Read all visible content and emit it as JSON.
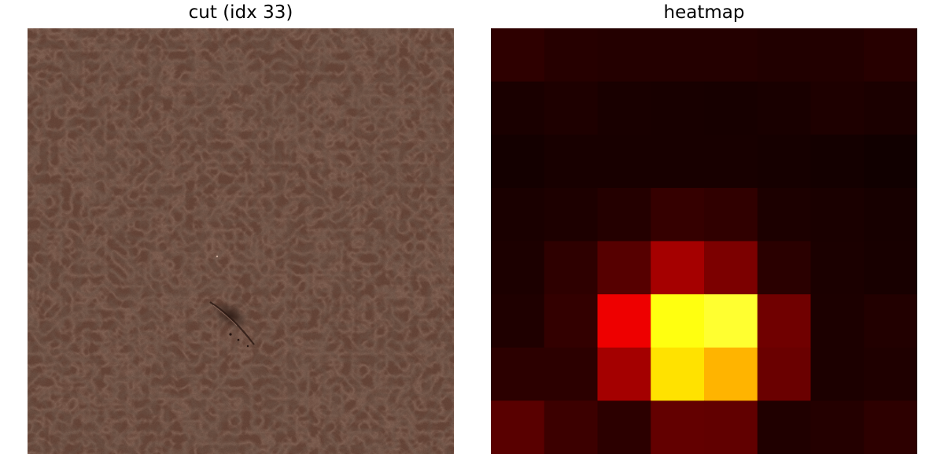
{
  "panels": {
    "left": {
      "title": "cut (idx 33)",
      "base_color": "#6e4a3c"
    },
    "right": {
      "title": "heatmap",
      "colormap": "hot"
    }
  },
  "heatmap": {
    "rows": 8,
    "cols": 8,
    "colors": [
      [
        "#2e0000",
        "#260000",
        "#240000",
        "#240000",
        "#240000",
        "#210000",
        "#220000",
        "#270000"
      ],
      [
        "#1a0000",
        "#1e0000",
        "#190000",
        "#180000",
        "#170000",
        "#190000",
        "#1e0000",
        "#1b0000"
      ],
      [
        "#140000",
        "#180000",
        "#180000",
        "#180000",
        "#180000",
        "#160000",
        "#140000",
        "#110000"
      ],
      [
        "#1a0000",
        "#1d0000",
        "#240000",
        "#350000",
        "#300000",
        "#1c0000",
        "#1a0000",
        "#170000"
      ],
      [
        "#1c0000",
        "#2e0000",
        "#560000",
        "#a50000",
        "#7c0000",
        "#2a0000",
        "#1b0000",
        "#180000"
      ],
      [
        "#1f0000",
        "#330000",
        "#ee0000",
        "#ffff10",
        "#ffff30",
        "#700000",
        "#1c0000",
        "#220000"
      ],
      [
        "#2c0000",
        "#2c0000",
        "#a40000",
        "#ffe200",
        "#ffb400",
        "#6a0000",
        "#1c0000",
        "#1f0000"
      ],
      [
        "#590000",
        "#3c0000",
        "#2c0000",
        "#630000",
        "#610000",
        "#200000",
        "#240000",
        "#2d0000"
      ]
    ]
  }
}
